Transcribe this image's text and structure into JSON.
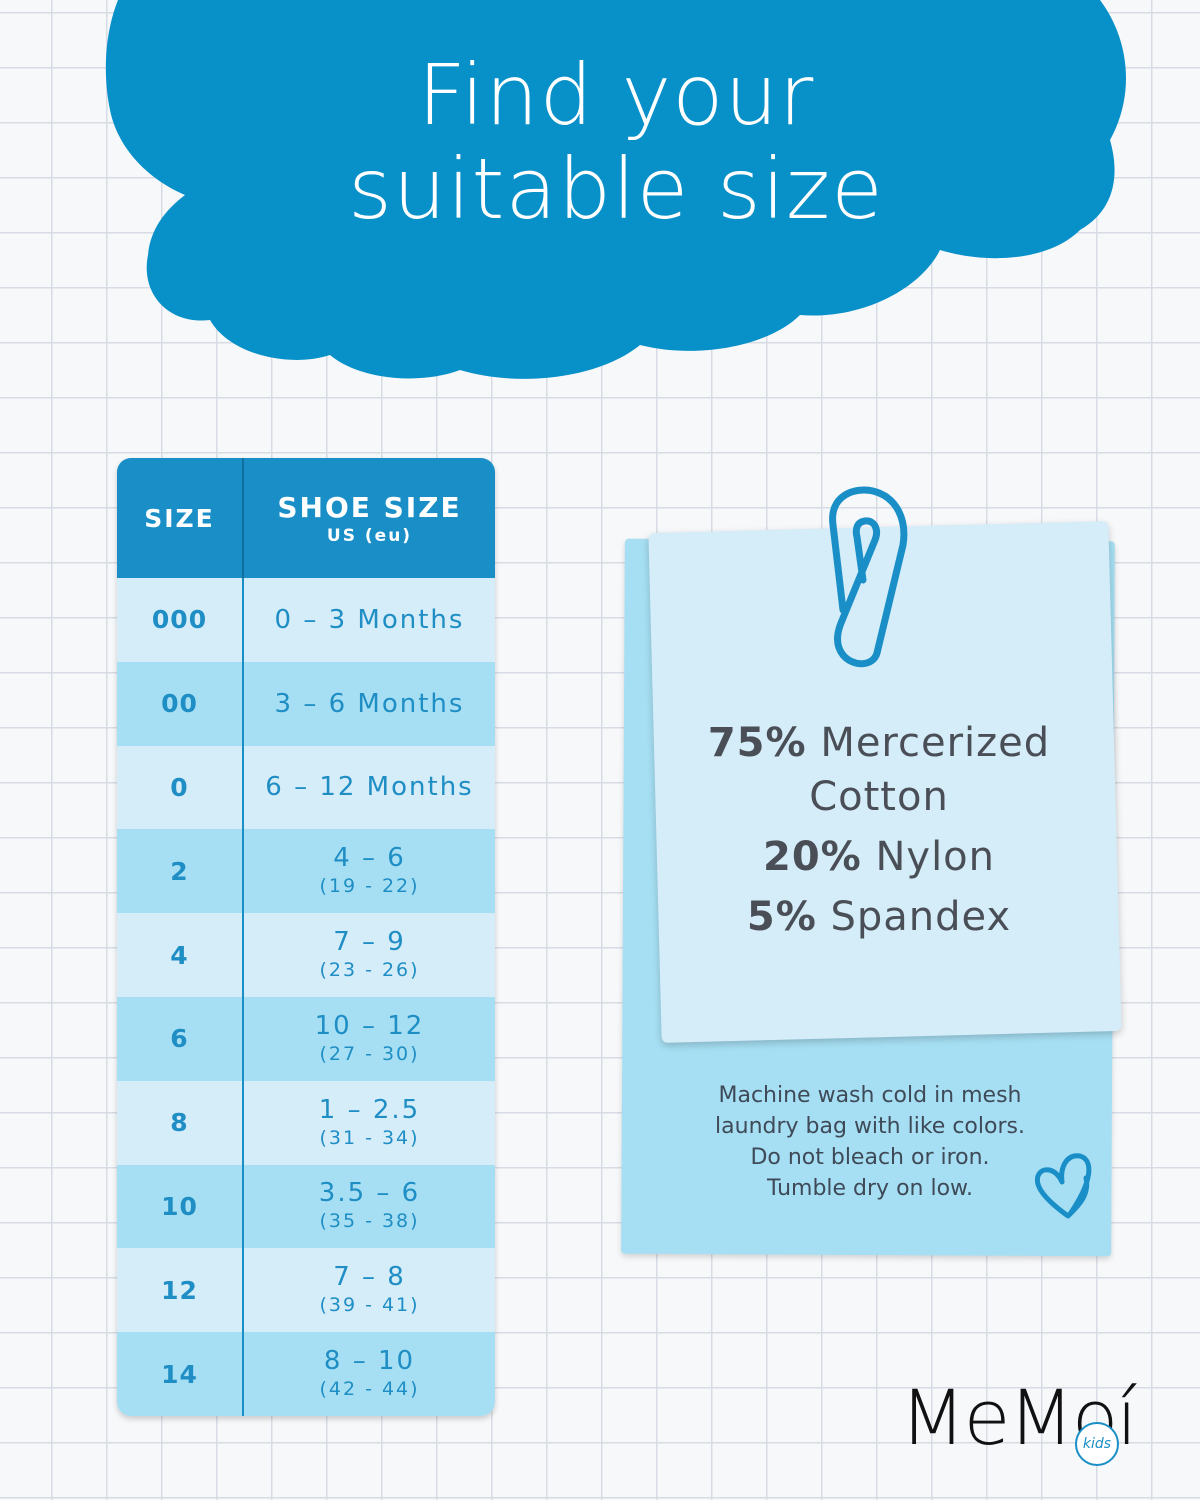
{
  "headline": {
    "line1": "Find your",
    "line2": "suitable size"
  },
  "colors": {
    "primary_blue": "#1a8fc7",
    "light_row": "#d5ecf9",
    "dark_row": "#a6dff3",
    "text_gray": "#4a4f57"
  },
  "size_table": {
    "header_size": "SIZE",
    "header_shoe": "SHOE SIZE",
    "header_sub": "US (eu)",
    "rows": [
      {
        "size": "000",
        "us": "0 – 3 Months",
        "eu": ""
      },
      {
        "size": "00",
        "us": "3 – 6 Months",
        "eu": ""
      },
      {
        "size": "0",
        "us": "6 – 12 Months",
        "eu": ""
      },
      {
        "size": "2",
        "us": "4 – 6",
        "eu": "(19 - 22)"
      },
      {
        "size": "4",
        "us": "7 – 9",
        "eu": "(23 - 26)"
      },
      {
        "size": "6",
        "us": "10 – 12",
        "eu": "(27 - 30)"
      },
      {
        "size": "8",
        "us": "1 – 2.5",
        "eu": "(31 - 34)"
      },
      {
        "size": "10",
        "us": "3.5 – 6",
        "eu": "(35 - 38)"
      },
      {
        "size": "12",
        "us": "7 – 8",
        "eu": "(39 - 41)"
      },
      {
        "size": "14",
        "us": "8 – 10",
        "eu": "(42 - 44)"
      }
    ]
  },
  "material": {
    "cotton_pct": "75%",
    "cotton_name": "Mercerized",
    "cotton_name2": "Cotton",
    "nylon_pct": "20%",
    "nylon_name": "Nylon",
    "spandex_pct": "5%",
    "spandex_name": "Spandex"
  },
  "care": {
    "line1": "Machine wash cold in mesh",
    "line2": "laundry bag with like colors.",
    "line3": "Do not bleach or iron.",
    "line4": "Tumble dry on low."
  },
  "icons": {
    "clip": "paperclip-icon",
    "heart": "heart-doodle-icon"
  },
  "logo": {
    "text": "MeMoí",
    "badge": "kids"
  }
}
